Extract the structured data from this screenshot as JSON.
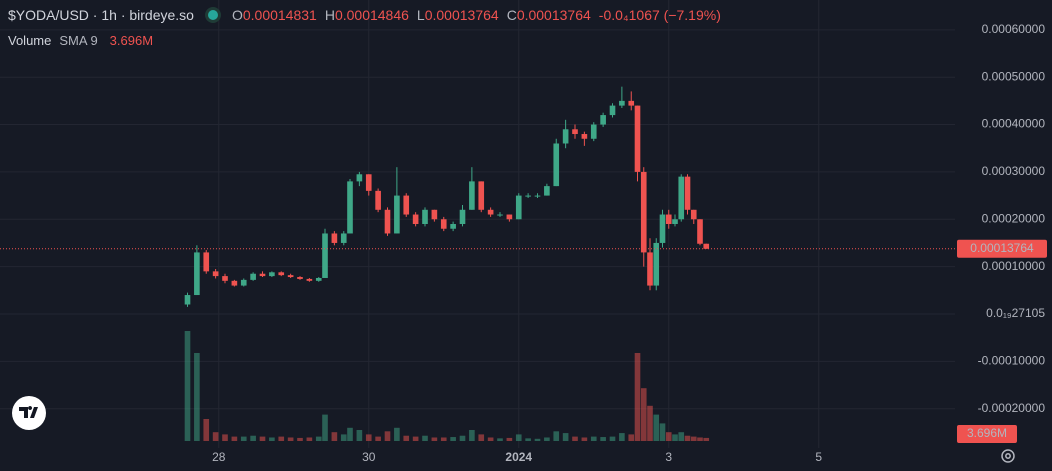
{
  "chart_data": {
    "type": "candlestick",
    "symbol": "$YODA/USD · 1h · birdeye.so",
    "legend": {
      "open_label": "O",
      "open": "0.00014831",
      "high_label": "H",
      "high": "0.00014846",
      "low_label": "L",
      "low": "0.00013764",
      "close_label": "C",
      "close": "0.00013764",
      "change": "-0.0₄1067 (−7.19%)"
    },
    "volume_legend": {
      "name": "Volume",
      "indicator": "SMA 9",
      "value": "3.696M"
    },
    "up_color": "#3fa888",
    "down_color": "#ef5350",
    "xlim": [
      0,
      305.6
    ],
    "xticks": [
      {
        "value": 70,
        "label": "28"
      },
      {
        "value": 118,
        "label": "30"
      },
      {
        "value": 166,
        "label": "2024"
      },
      {
        "value": 214,
        "label": "3"
      },
      {
        "value": 262,
        "label": "5"
      }
    ],
    "ylim": [
      -0.000283,
      0.000663
    ],
    "yticks": [
      {
        "value": 0.0006,
        "label": "0.00060000"
      },
      {
        "value": 0.0005,
        "label": "0.00050000"
      },
      {
        "value": 0.0004,
        "label": "0.00040000"
      },
      {
        "value": 0.0003,
        "label": "0.00030000"
      },
      {
        "value": 0.0002,
        "label": "0.00020000"
      },
      {
        "value": 0.0001,
        "label": "0.00010000"
      },
      {
        "value": 0,
        "label": "0.0₁₉27105"
      },
      {
        "value": -0.0001,
        "label": "-0.00010000"
      },
      {
        "value": -0.0002,
        "label": "-0.00020000"
      }
    ],
    "grid": true,
    "last_price": {
      "value": 0.00013764,
      "label": "0.00013764"
    },
    "x": [
      60,
      63,
      66,
      69,
      72,
      75,
      78,
      81,
      84,
      87,
      90,
      93,
      96,
      99,
      102,
      104,
      107,
      110,
      112,
      115,
      118,
      121,
      124,
      127,
      130,
      133,
      136,
      139,
      142,
      145,
      148,
      151,
      154,
      157,
      160,
      163,
      166,
      169,
      172,
      175,
      178,
      181,
      184,
      187,
      190,
      193,
      196,
      199,
      202,
      204,
      206,
      208,
      210,
      212,
      214,
      216,
      218,
      220,
      222,
      224,
      226
    ],
    "open": [
      2e-05,
      4e-05,
      0.00013,
      9e-05,
      8e-05,
      7e-05,
      6e-05,
      7.2e-05,
      8.5e-05,
      8e-05,
      8.8e-05,
      8.2e-05,
      7.8e-05,
      7.4e-05,
      7e-05,
      7.6e-05,
      0.00017,
      0.00015,
      0.00017,
      0.00028,
      0.000295,
      0.00026,
      0.00022,
      0.00017,
      0.00025,
      0.00021,
      0.00019,
      0.00022,
      0.0002,
      0.00018,
      0.00019,
      0.00022,
      0.00028,
      0.00022,
      0.00021,
      0.00021,
      0.0002,
      0.00025,
      0.00025,
      0.00025,
      0.00027,
      0.00036,
      0.00039,
      0.00038,
      0.00037,
      0.0004,
      0.00042,
      0.00044,
      0.00045,
      0.00044,
      0.0003,
      0.00013,
      6e-05,
      0.00015,
      0.00021,
      0.00019,
      0.0002,
      0.00029,
      0.00022,
      0.0002,
      0.00014831
    ],
    "high": [
      4.5e-05,
      0.000145,
      0.000135,
      9.5e-05,
      8.5e-05,
      7.2e-05,
      7.5e-05,
      8.8e-05,
      9e-05,
      9e-05,
      9e-05,
      8.5e-05,
      8e-05,
      7.6e-05,
      7.8e-05,
      0.00018,
      0.000175,
      0.000175,
      0.000285,
      0.0003,
      0.000295,
      0.000265,
      0.000225,
      0.00031,
      0.000255,
      0.000215,
      0.000225,
      0.00022,
      0.000205,
      0.000195,
      0.00023,
      0.00031,
      0.00028,
      0.000225,
      0.000215,
      0.00021,
      0.000255,
      0.000255,
      0.000255,
      0.000275,
      0.00037,
      0.00041,
      0.0004,
      0.000385,
      0.000405,
      0.000425,
      0.000445,
      0.00048,
      0.00047,
      0.00044,
      0.00031,
      0.00016,
      0.00016,
      0.00022,
      0.00022,
      0.00021,
      0.000295,
      0.000295,
      0.00022,
      0.0002,
      0.00014846
    ],
    "low": [
      1.5e-05,
      4e-05,
      8.5e-05,
      7.5e-05,
      6.5e-05,
      5.8e-05,
      5.8e-05,
      7e-05,
      7.8e-05,
      7.8e-05,
      8e-05,
      7.6e-05,
      7.2e-05,
      6.8e-05,
      6.8e-05,
      7.6e-05,
      0.000145,
      0.000145,
      0.00017,
      0.00027,
      0.00025,
      0.000215,
      0.000165,
      0.00017,
      0.000205,
      0.000185,
      0.000185,
      0.000195,
      0.000175,
      0.000175,
      0.000185,
      0.00022,
      0.000215,
      0.000205,
      0.000205,
      0.000195,
      0.0002,
      0.000245,
      0.000245,
      0.00025,
      0.00027,
      0.00035,
      0.00037,
      0.000355,
      0.000365,
      0.000395,
      0.000415,
      0.000435,
      0.00043,
      0.00028,
      0.0001,
      5e-05,
      5e-05,
      0.00014,
      0.00018,
      0.000185,
      0.000195,
      0.00021,
      0.00019,
      0.000145,
      0.00013764
    ],
    "close": [
      4e-05,
      0.00013,
      9e-05,
      8e-05,
      7e-05,
      6e-05,
      7.2e-05,
      8.5e-05,
      8e-05,
      8.8e-05,
      8.2e-05,
      7.8e-05,
      7.4e-05,
      7e-05,
      7.6e-05,
      0.00017,
      0.00015,
      0.00017,
      0.00028,
      0.000295,
      0.00026,
      0.00022,
      0.00017,
      0.00025,
      0.00021,
      0.00019,
      0.00022,
      0.0002,
      0.00018,
      0.00019,
      0.00022,
      0.00028,
      0.00022,
      0.00021,
      0.00021,
      0.0002,
      0.00025,
      0.00025,
      0.00025,
      0.00027,
      0.00036,
      0.00039,
      0.00038,
      0.00037,
      0.0004,
      0.00042,
      0.00044,
      0.00045,
      0.00044,
      0.0003,
      0.00013,
      6e-05,
      0.00015,
      0.00021,
      0.00019,
      0.0002,
      0.00029,
      0.00022,
      0.0002,
      0.00014831,
      0.00013764
    ],
    "volume": [
      25000000,
      20000000,
      5000000,
      2000000,
      1500000,
      1000000,
      1000000,
      1200000,
      1000000,
      800000,
      1000000,
      800000,
      700000,
      800000,
      1000000,
      6000000,
      2000000,
      1500000,
      3000000,
      2500000,
      1500000,
      1000000,
      2200000,
      3000000,
      1200000,
      1000000,
      1200000,
      800000,
      800000,
      900000,
      1200000,
      2500000,
      1500000,
      800000,
      600000,
      700000,
      1500000,
      600000,
      500000,
      800000,
      2200000,
      1800000,
      1000000,
      800000,
      1000000,
      900000,
      1000000,
      1800000,
      1500000,
      20000000,
      12000000,
      8000000,
      6000000,
      4000000,
      2000000,
      1500000,
      2000000,
      1200000,
      1000000,
      800000,
      700000
    ]
  }
}
